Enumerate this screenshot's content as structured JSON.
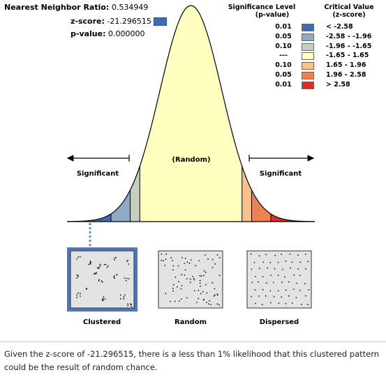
{
  "stats": {
    "nnr_label": "Nearest Neighbor Ratio:",
    "nnr_value": "0.534949",
    "z_label": "z-score:",
    "z_value": "-21.296515",
    "p_label": "p-value:",
    "p_value": "0.000000"
  },
  "legend": {
    "sig_header_1": "Significance Level",
    "sig_header_2": "(p-value)",
    "cv_header_1": "Critical Value",
    "cv_header_2": "(z-score)",
    "rows": [
      {
        "sig": "0.01",
        "cv": "< -2.58",
        "color": "#3e6db5"
      },
      {
        "sig": "0.05",
        "cv": "-2.58 - -1.96",
        "color": "#8fa9c9"
      },
      {
        "sig": "0.10",
        "cv": "-1.96 - -1.65",
        "color": "#c4cfbf"
      },
      {
        "sig": "---",
        "cv": "-1.65 - 1.65",
        "color": "#ffffc0"
      },
      {
        "sig": "0.10",
        "cv": "1.65 - 1.96",
        "color": "#f9c08b"
      },
      {
        "sig": "0.05",
        "cv": "1.96 - 2.58",
        "color": "#ef8054"
      },
      {
        "sig": "0.01",
        "cv": "> 2.58",
        "color": "#d7302b"
      }
    ]
  },
  "curve": {
    "random_label": "(Random)",
    "left_label": "Significant",
    "right_label": "Significant",
    "z_min": -4,
    "z_max": 4,
    "regions": [
      {
        "from": -4,
        "to": -2.58,
        "color": "#3e6db5"
      },
      {
        "from": -2.58,
        "to": -1.96,
        "color": "#8fa9c9"
      },
      {
        "from": -1.96,
        "to": -1.65,
        "color": "#c4cfbf"
      },
      {
        "from": -1.65,
        "to": 1.65,
        "color": "#ffffc0"
      },
      {
        "from": 1.65,
        "to": 1.96,
        "color": "#f9c08b"
      },
      {
        "from": 1.96,
        "to": 2.58,
        "color": "#ef8054"
      },
      {
        "from": 2.58,
        "to": 4,
        "color": "#d7302b"
      }
    ],
    "highlight_region": "clustered"
  },
  "patterns": {
    "clustered_label": "Clustered",
    "random_label": "Random",
    "dispersed_label": "Dispersed",
    "selected": "Clustered"
  },
  "caption": "Given the z-score of -21.296515, there is a less than 1% likelihood that this clustered pattern could be the result of random chance."
}
